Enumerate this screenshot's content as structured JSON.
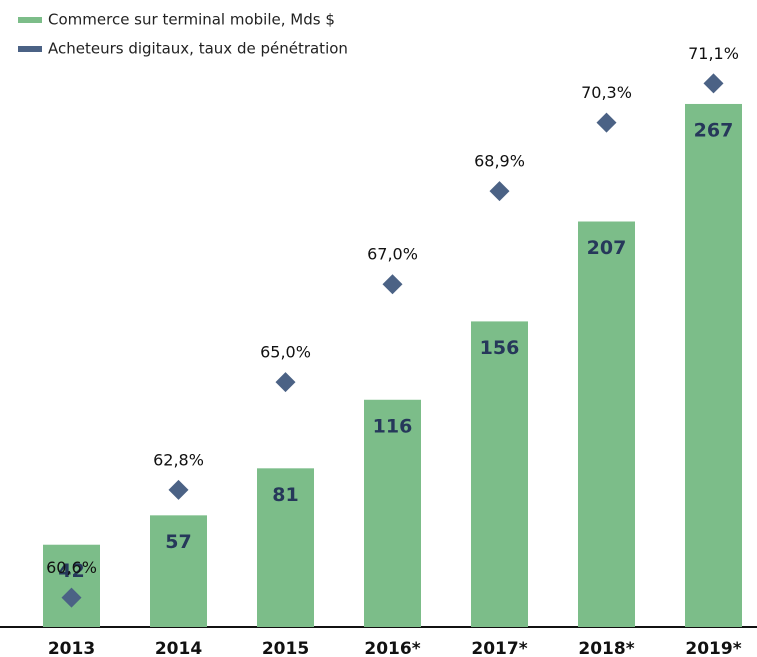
{
  "chart_data": {
    "type": "bar",
    "categories": [
      "2013",
      "2014",
      "2015",
      "2016*",
      "2017*",
      "2018*",
      "2019*"
    ],
    "series": [
      {
        "name": "Commerce sur terminal mobile, Mds $",
        "type": "bar",
        "color": "#7cbd89",
        "values": [
          42,
          57,
          81,
          116,
          156,
          207,
          267
        ]
      },
      {
        "name": "Acheteurs digitaux, taux de pénétration",
        "type": "scatter",
        "color": "#4b6285",
        "axis": "y2",
        "values": [
          60.6,
          62.8,
          65.0,
          67.0,
          68.9,
          70.3,
          71.1
        ],
        "value_labels": [
          "60,6%",
          "62,8%",
          "65,0%",
          "67,0%",
          "68,9%",
          "70,3%",
          "71,1%"
        ]
      }
    ],
    "ylim": [
      0,
      280
    ],
    "y2lim": [
      60,
      71.2
    ],
    "legend": "top-left"
  }
}
